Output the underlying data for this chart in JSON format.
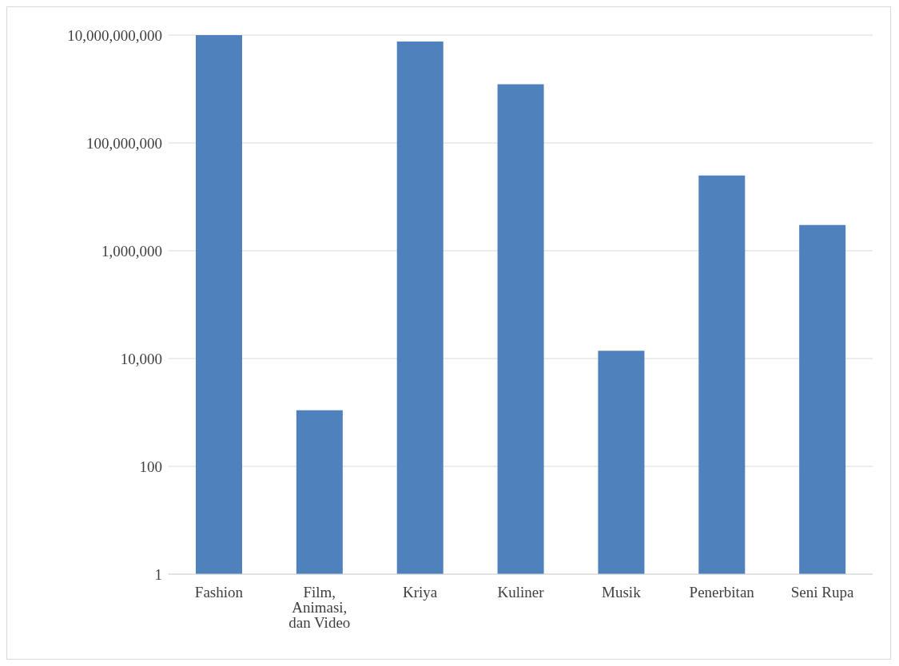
{
  "chart_data": {
    "type": "bar",
    "categories": [
      "Fashion",
      "Film, Animasi, dan Video",
      "Kriya",
      "Kuliner",
      "Musik",
      "Penerbitan",
      "Seni Rupa"
    ],
    "values": [
      10000000000,
      1100,
      7600000000,
      1230000000,
      14000,
      25000000,
      3000000
    ],
    "color": "#4f81bd",
    "log": "y",
    "ylim": [
      1,
      10000000000
    ],
    "yticks": [
      {
        "value": 1,
        "label": "1"
      },
      {
        "value": 100,
        "label": "100"
      },
      {
        "value": 10000,
        "label": "10,000"
      },
      {
        "value": 1000000,
        "label": "1,000,000"
      },
      {
        "value": 100000000,
        "label": "100,000,000"
      },
      {
        "value": 10000000000,
        "label": "10,000,000,000"
      }
    ],
    "grid": "y",
    "legend": false
  }
}
